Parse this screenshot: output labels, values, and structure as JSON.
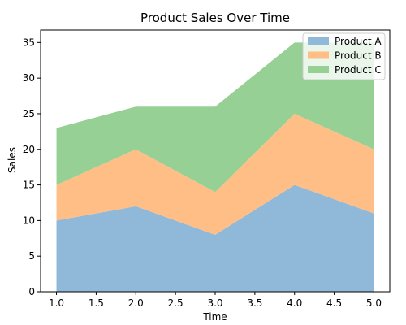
{
  "chart_data": {
    "type": "area",
    "stacked": true,
    "title": "Product Sales Over Time",
    "xlabel": "Time",
    "ylabel": "Sales",
    "x": [
      1,
      2,
      3,
      4,
      5
    ],
    "xlim": [
      0.8,
      5.2
    ],
    "ylim": [
      0,
      36.75
    ],
    "xticks": [
      1.0,
      1.5,
      2.0,
      2.5,
      3.0,
      3.5,
      4.0,
      4.5,
      5.0
    ],
    "xtick_labels": [
      "1.0",
      "1.5",
      "2.0",
      "2.5",
      "3.0",
      "3.5",
      "4.0",
      "4.5",
      "5.0"
    ],
    "yticks": [
      0,
      5,
      10,
      15,
      20,
      25,
      30,
      35
    ],
    "ytick_labels": [
      "0",
      "5",
      "10",
      "15",
      "20",
      "25",
      "30",
      "35"
    ],
    "grid": false,
    "legend_position": "top-right",
    "series": [
      {
        "name": "Product A",
        "values": [
          10,
          12,
          8,
          15,
          11
        ],
        "color": "#8fb8d9"
      },
      {
        "name": "Product B",
        "values": [
          5,
          8,
          6,
          10,
          9
        ],
        "color": "#ffbe86"
      },
      {
        "name": "Product C",
        "values": [
          8,
          6,
          12,
          10,
          15
        ],
        "color": "#97d095"
      }
    ]
  }
}
